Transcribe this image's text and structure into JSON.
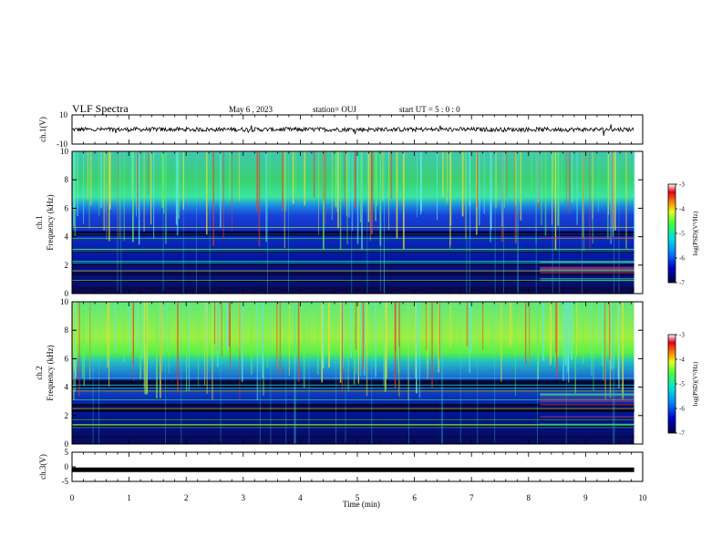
{
  "header": {
    "title": "VLF Spectra",
    "date": "May 6 , 2023",
    "station": "station= OUJ",
    "start": "start UT = 5 : 0 : 0"
  },
  "colors": {
    "background": "#ffffff",
    "axis": "#000000",
    "spectrogram_low": "#00004a",
    "spectrogram_mid": "#1c44d8",
    "spectrogram_high": "#35f08a",
    "spectrogram_peak": "#e6322a"
  },
  "chart_data": [
    {
      "type": "line",
      "ylabel": "ch.1(V)",
      "ylim": [
        -10,
        10
      ],
      "yticks": [
        "10",
        "-10"
      ],
      "x_range_min": [
        0,
        10
      ],
      "series": [
        {
          "values_description_free": true,
          "baseline": 0,
          "spread": 1.5
        }
      ]
    },
    {
      "type": "heatmap",
      "ylabel": "ch.1 Frequency (kHz)",
      "ylim": [
        0,
        10
      ],
      "yticks": [
        "0",
        "2",
        "4",
        "6",
        "8",
        "10"
      ],
      "xlim": [
        0,
        10
      ],
      "colorbar": {
        "label": "log(PSD)(V²/Hz)",
        "range": [
          -7,
          -3
        ],
        "ticks": [
          "-3",
          "-4",
          "-5",
          "-6",
          "-7"
        ]
      }
    },
    {
      "type": "heatmap",
      "ylabel": "ch.2 Frequency (kHz)",
      "ylim": [
        0,
        10
      ],
      "yticks": [
        "0",
        "2",
        "4",
        "6",
        "8",
        "10"
      ],
      "xlim": [
        0,
        10
      ],
      "colorbar": {
        "label": "log(PSD)(V²/Hz)",
        "range": [
          -7,
          -3
        ],
        "ticks": [
          "-3",
          "-4",
          "-5",
          "-6",
          "-7"
        ]
      }
    },
    {
      "type": "line",
      "ylabel": "ch.3(V)",
      "ylim": [
        -5,
        5
      ],
      "yticks": [
        "5",
        "0",
        "-5"
      ],
      "xlim": [
        0,
        10
      ],
      "series": [
        {
          "constant": -1
        }
      ]
    }
  ],
  "xaxis": {
    "label": "Time (min)",
    "ticks": [
      "0",
      "1",
      "2",
      "3",
      "4",
      "5",
      "6",
      "7",
      "8",
      "9",
      "10"
    ]
  }
}
